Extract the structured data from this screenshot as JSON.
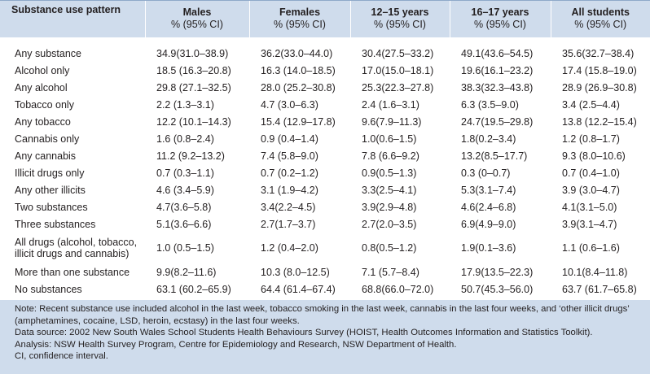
{
  "table": {
    "headers": [
      {
        "main": "Substance use pattern",
        "sub": ""
      },
      {
        "main": "Males",
        "sub": "% (95% CI)"
      },
      {
        "main": "Females",
        "sub": "% (95% CI)"
      },
      {
        "main": "12–15 years",
        "sub": "% (95% CI)"
      },
      {
        "main": "16–17 years",
        "sub": "% (95% CI)"
      },
      {
        "main": "All students",
        "sub": "% (95% CI)"
      }
    ],
    "rows": [
      {
        "label": "Any substance",
        "values": [
          "34.9(31.0–38.9)",
          "36.2(33.0–44.0)",
          "30.4(27.5–33.2)",
          "49.1(43.6–54.5)",
          "35.6(32.7–38.4)"
        ]
      },
      {
        "label": "Alcohol only",
        "values": [
          "18.5 (16.3–20.8)",
          "16.3 (14.0–18.5)",
          "17.0(15.0–18.1)",
          "19.6(16.1–23.2)",
          "17.4 (15.8–19.0)"
        ]
      },
      {
        "label": "Any alcohol",
        "values": [
          "29.8 (27.1–32.5)",
          "28.0 (25.2–30.8)",
          "25.3(22.3–27.8)",
          "38.3(32.3–43.8)",
          "28.9 (26.9–30.8)"
        ]
      },
      {
        "label": "Tobacco only",
        "values": [
          "2.2 (1.3–3.1)",
          "4.7 (3.0–6.3)",
          "2.4 (1.6–3.1)",
          "6.3 (3.5–9.0)",
          "3.4 (2.5–4.4)"
        ]
      },
      {
        "label": "Any tobacco",
        "values": [
          "12.2 (10.1–14.3)",
          "15.4 (12.9–17.8)",
          "9.6(7.9–11.3)",
          "24.7(19.5–29.8)",
          "13.8 (12.2–15.4)"
        ]
      },
      {
        "label": "Cannabis only",
        "values": [
          "1.6 (0.8–2.4)",
          "0.9 (0.4–1.4)",
          "1.0(0.6–1.5)",
          "1.8(0.2–3.4)",
          "1.2 (0.8–1.7)"
        ]
      },
      {
        "label": "Any cannabis",
        "values": [
          "11.2 (9.2–13.2)",
          "7.4 (5.8–9.0)",
          "7.8 (6.6–9.2)",
          "13.2(8.5–17.7)",
          "9.3 (8.0–10.6)"
        ]
      },
      {
        "label": "Illicit drugs only",
        "values": [
          "0.7 (0.3–1.1)",
          "0.7 (0.2–1.2)",
          "0.9(0.5–1.3)",
          "0.3 (0–0.7)",
          "0.7 (0.4–1.0)"
        ]
      },
      {
        "label": "Any other illicits",
        "values": [
          "4.6 (3.4–5.9)",
          "3.1 (1.9–4.2)",
          "3.3(2.5–4.1)",
          "5.3(3.1–7.4)",
          "3.9 (3.0–4.7)"
        ]
      },
      {
        "label": "Two substances",
        "values": [
          "4.7(3.6–5.8)",
          "3.4(2.2–4.5)",
          "3.9(2.9–4.8)",
          "4.6(2.4–6.8)",
          "4.1(3.1–5.0)"
        ]
      },
      {
        "label": "Three substances",
        "values": [
          "5.1(3.6–6.6)",
          "2.7(1.7–3.7)",
          "2.7(2.0–3.5)",
          "6.9(4.9–9.0)",
          "3.9(3.1–4.7)"
        ]
      },
      {
        "label": "All drugs (alcohol, tobacco, illicit drugs and cannabis)",
        "values": [
          "1.0 (0.5–1.5)",
          "1.2 (0.4–2.0)",
          "0.8(0.5–1.2)",
          "1.9(0.1–3.6)",
          "1.1 (0.6–1.6)"
        ]
      },
      {
        "label": "More than one substance",
        "values": [
          "9.9(8.2–11.6)",
          "10.3 (8.0–12.5)",
          "7.1 (5.7–8.4)",
          "17.9(13.5–22.3)",
          "10.1(8.4–11.8)"
        ]
      },
      {
        "label": "No substances",
        "values": [
          "63.1 (60.2–65.9)",
          "64.4 (61.4–67.4)",
          "68.8(66.0–72.0)",
          "50.7(45.3–56.0)",
          "63.7 (61.7–65.8)"
        ]
      }
    ]
  },
  "notes": [
    "Note: Recent substance use included alcohol in the last week, tobacco smoking in the last week, cannabis in the last four weeks, and ‘other illicit drugs’ (amphetamines, cocaine, LSD, heroin, ecstasy) in the last four weeks.",
    "Data source: 2002 New South Wales School Students Health Behaviours Survey (HOIST, Health Outcomes Information and Statistics Toolkit).",
    "Analysis: NSW Health Survey Program, Centre for Epidemiology and Research, NSW Department of Health.",
    "CI, confidence interval."
  ]
}
